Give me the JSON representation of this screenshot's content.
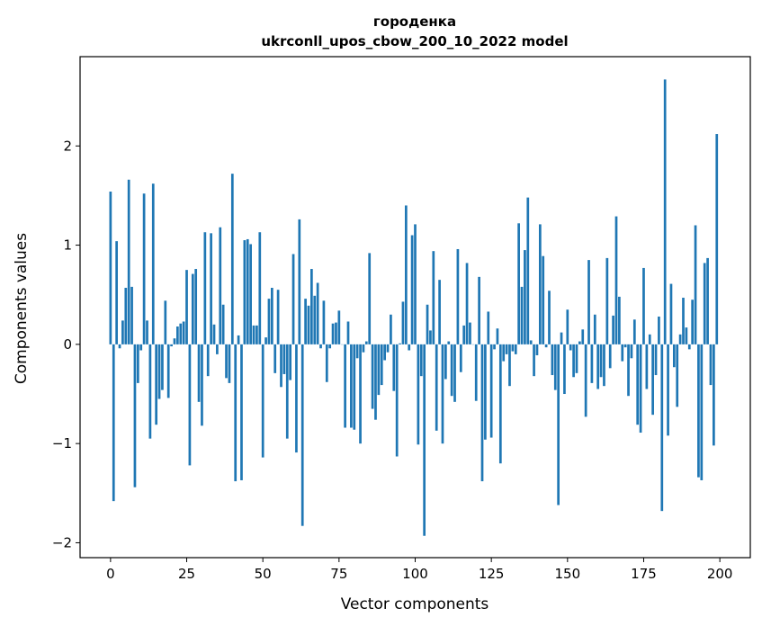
{
  "chart_data": {
    "type": "bar",
    "title": "городенка",
    "subtitle": "ukrconll_upos_cbow_200_10_2022 model",
    "xlabel": "Vector components",
    "ylabel": "Components values",
    "xlim": [
      -10,
      210
    ],
    "ylim": [
      -2.15,
      2.9
    ],
    "xticks": [
      0,
      25,
      50,
      75,
      100,
      125,
      150,
      175,
      200
    ],
    "yticks": [
      -2,
      -1,
      0,
      1,
      2
    ],
    "ytick_labels": [
      "−2",
      "−1",
      "0",
      "1",
      "2"
    ],
    "grid": false,
    "legend": "none",
    "bar_color": "#1f77b4",
    "x": [
      0,
      1,
      2,
      3,
      4,
      5,
      6,
      7,
      8,
      9,
      10,
      11,
      12,
      13,
      14,
      15,
      16,
      17,
      18,
      19,
      20,
      21,
      22,
      23,
      24,
      25,
      26,
      27,
      28,
      29,
      30,
      31,
      32,
      33,
      34,
      35,
      36,
      37,
      38,
      39,
      40,
      41,
      42,
      43,
      44,
      45,
      46,
      47,
      48,
      49,
      50,
      51,
      52,
      53,
      54,
      55,
      56,
      57,
      58,
      59,
      60,
      61,
      62,
      63,
      64,
      65,
      66,
      67,
      68,
      69,
      70,
      71,
      72,
      73,
      74,
      75,
      76,
      77,
      78,
      79,
      80,
      81,
      82,
      83,
      84,
      85,
      86,
      87,
      88,
      89,
      90,
      91,
      92,
      93,
      94,
      95,
      96,
      97,
      98,
      99,
      100,
      101,
      102,
      103,
      104,
      105,
      106,
      107,
      108,
      109,
      110,
      111,
      112,
      113,
      114,
      115,
      116,
      117,
      118,
      119,
      120,
      121,
      122,
      123,
      124,
      125,
      126,
      127,
      128,
      129,
      130,
      131,
      132,
      133,
      134,
      135,
      136,
      137,
      138,
      139,
      140,
      141,
      142,
      143,
      144,
      145,
      146,
      147,
      148,
      149,
      150,
      151,
      152,
      153,
      154,
      155,
      156,
      157,
      158,
      159,
      160,
      161,
      162,
      163,
      164,
      165,
      166,
      167,
      168,
      169,
      170,
      171,
      172,
      173,
      174,
      175,
      176,
      177,
      178,
      179,
      180,
      181,
      182,
      183,
      184,
      185,
      186,
      187,
      188,
      189,
      190,
      191,
      192,
      193,
      194,
      195,
      196,
      197,
      198,
      199
    ],
    "values": [
      1.54,
      -1.58,
      1.04,
      -0.04,
      0.24,
      0.57,
      1.66,
      0.58,
      -1.44,
      -0.39,
      -0.06,
      1.52,
      0.24,
      -0.95,
      1.62,
      -0.81,
      -0.55,
      -0.46,
      0.44,
      -0.54,
      -0.02,
      0.06,
      0.18,
      0.21,
      0.23,
      0.75,
      -1.22,
      0.71,
      0.76,
      -0.58,
      -0.82,
      1.13,
      -0.32,
      1.12,
      0.2,
      -0.1,
      1.18,
      0.4,
      -0.34,
      -0.39,
      1.72,
      -1.38,
      0.09,
      -1.37,
      1.05,
      1.06,
      1.01,
      0.19,
      0.19,
      1.13,
      -1.14,
      0.07,
      0.46,
      0.57,
      -0.29,
      0.55,
      -0.43,
      -0.3,
      -0.95,
      -0.36,
      0.91,
      -1.09,
      1.26,
      -1.83,
      0.46,
      0.39,
      0.76,
      0.49,
      0.62,
      -0.04,
      0.44,
      -0.38,
      -0.04,
      0.21,
      0.22,
      0.34,
      0.0,
      -0.84,
      0.23,
      -0.84,
      -0.86,
      -0.14,
      -1.0,
      -0.08,
      0.03,
      0.92,
      -0.65,
      -0.76,
      -0.51,
      -0.41,
      -0.16,
      -0.08,
      0.3,
      -0.47,
      -1.13,
      0.01,
      0.43,
      1.4,
      -0.06,
      1.1,
      1.21,
      -1.01,
      -0.32,
      -1.93,
      0.4,
      0.14,
      0.94,
      -0.87,
      0.65,
      -1.0,
      -0.35,
      0.03,
      -0.52,
      -0.58,
      0.96,
      -0.28,
      0.19,
      0.82,
      0.22,
      0.0,
      -0.57,
      0.68,
      -1.38,
      -0.96,
      0.33,
      -0.94,
      -0.05,
      0.16,
      -1.2,
      -0.17,
      -0.1,
      -0.42,
      -0.07,
      -0.1,
      1.22,
      0.58,
      0.95,
      1.48,
      0.04,
      -0.32,
      -0.11,
      1.21,
      0.89,
      -0.03,
      0.54,
      -0.31,
      -0.46,
      -1.62,
      0.12,
      -0.5,
      0.35,
      -0.06,
      -0.33,
      -0.29,
      0.03,
      0.15,
      -0.73,
      0.85,
      -0.39,
      0.3,
      -0.45,
      -0.33,
      -0.42,
      0.87,
      -0.24,
      0.29,
      1.29,
      0.48,
      -0.17,
      -0.03,
      -0.52,
      -0.14,
      0.25,
      -0.81,
      -0.89,
      0.77,
      -0.45,
      0.1,
      -0.71,
      -0.31,
      0.28,
      -1.68,
      2.67,
      -0.92,
      0.61,
      -0.23,
      -0.63,
      0.1,
      0.47,
      0.17,
      -0.05,
      0.45,
      1.2,
      -1.34,
      -1.37,
      0.82,
      0.87,
      -0.41,
      -1.02,
      2.12
    ]
  }
}
